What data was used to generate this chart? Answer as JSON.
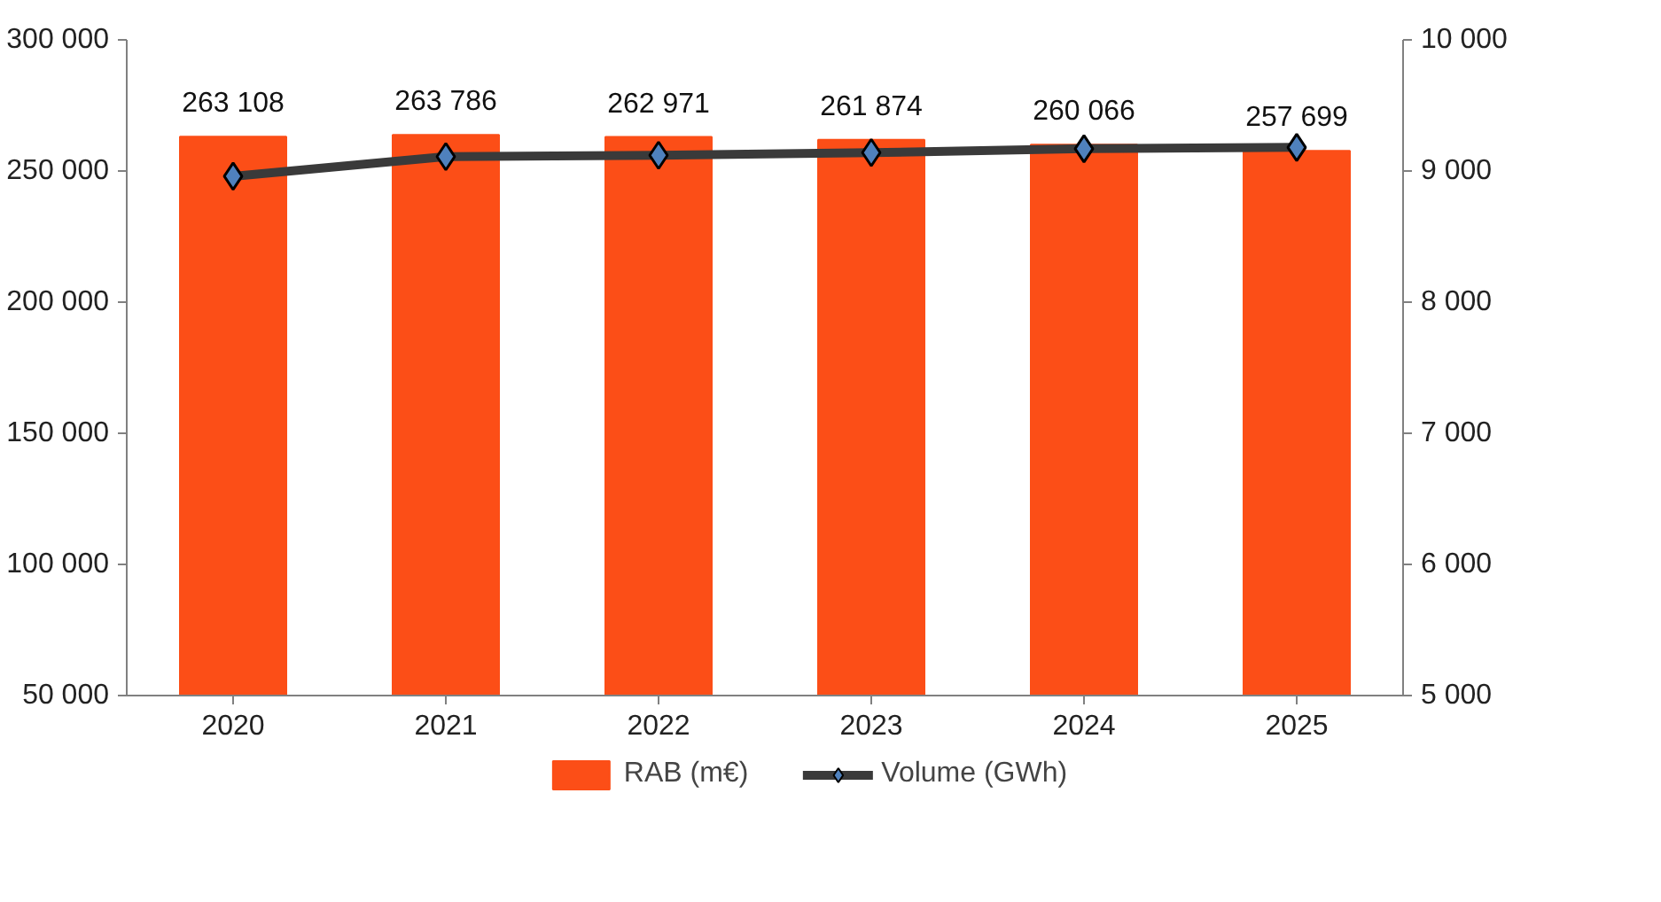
{
  "chart_data": {
    "type": "bar",
    "categories": [
      "2020",
      "2021",
      "2022",
      "2023",
      "2024",
      "2025"
    ],
    "series": [
      {
        "name": "RAB (m€)",
        "color": "#fc4e17",
        "values": [
          263108,
          263786,
          262971,
          261874,
          260066,
          257699
        ],
        "value_labels": [
          "263 108",
          "263 786",
          "262 971",
          "261 874",
          "260 066",
          "257 699"
        ]
      },
      {
        "name": "Volume (GWh)",
        "type": "line",
        "axis": "y2",
        "color": "#3a3a3a",
        "marker": "diamond",
        "values": [
          8960,
          9110,
          9120,
          9140,
          9170,
          9180
        ]
      }
    ],
    "ylim": [
      50000,
      300000
    ],
    "yticks": [
      {
        "value": 50000,
        "label": "50 000"
      },
      {
        "value": 100000,
        "label": "100 000"
      },
      {
        "value": 150000,
        "label": "150 000"
      },
      {
        "value": 200000,
        "label": "200 000"
      },
      {
        "value": 250000,
        "label": "250 000"
      },
      {
        "value": 300000,
        "label": "300 000"
      }
    ],
    "y2lim": [
      5000,
      10000
    ],
    "y2ticks": [
      {
        "value": 5000,
        "label": "5 000"
      },
      {
        "value": 6000,
        "label": "6 000"
      },
      {
        "value": 7000,
        "label": "7 000"
      },
      {
        "value": 8000,
        "label": "8 000"
      },
      {
        "value": 9000,
        "label": "9 000"
      },
      {
        "value": 10000,
        "label": "10 000"
      }
    ],
    "grid": false,
    "legend": "bottom"
  }
}
